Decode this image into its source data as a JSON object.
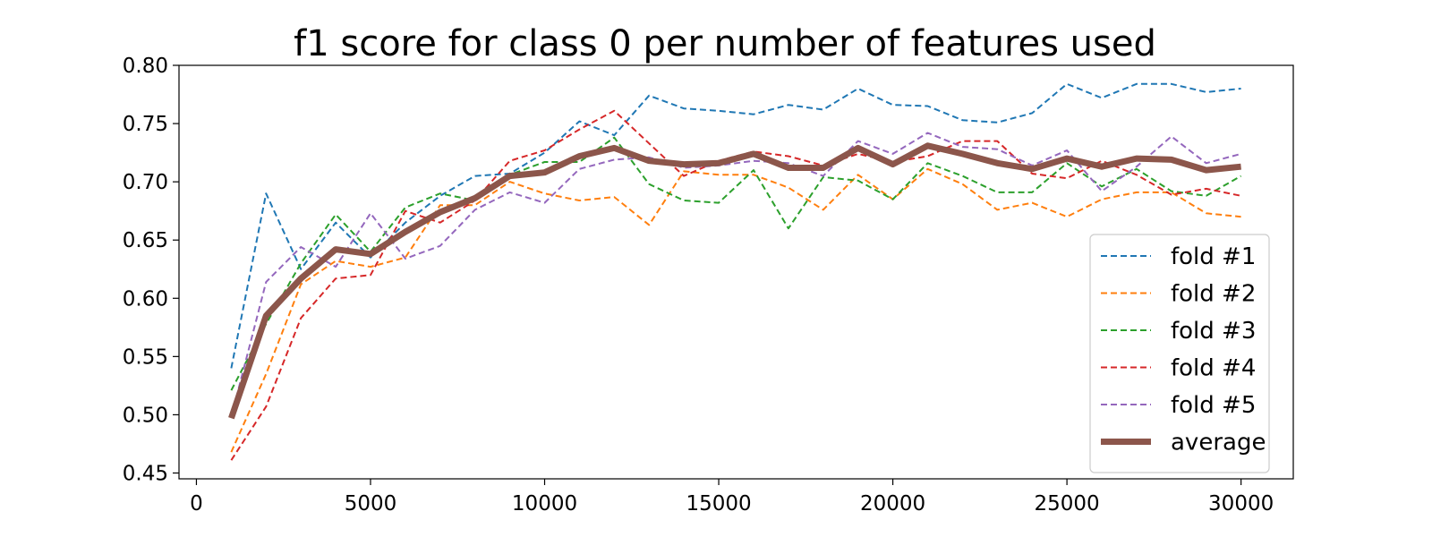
{
  "chart_data": {
    "type": "line",
    "title": "f1 score for class 0 per number of features used",
    "xlabel": "",
    "ylabel": "",
    "xlim": [
      -500,
      31500
    ],
    "ylim": [
      0.445,
      0.8
    ],
    "xticks": [
      0,
      5000,
      10000,
      15000,
      20000,
      25000,
      30000
    ],
    "yticks": [
      0.45,
      0.5,
      0.55,
      0.6,
      0.65,
      0.7,
      0.75,
      0.8
    ],
    "legend_position": "lower-right",
    "grid": false,
    "x": [
      1000,
      2000,
      3000,
      4000,
      5000,
      6000,
      7000,
      8000,
      9000,
      10000,
      11000,
      12000,
      13000,
      14000,
      15000,
      16000,
      17000,
      18000,
      19000,
      20000,
      21000,
      22000,
      23000,
      24000,
      25000,
      26000,
      27000,
      28000,
      29000,
      30000
    ],
    "series": [
      {
        "name": "fold #1",
        "color": "#1f77b4",
        "style": "dashed",
        "values": [
          0.54,
          0.69,
          0.625,
          0.665,
          0.635,
          0.665,
          0.688,
          0.705,
          0.707,
          0.725,
          0.752,
          0.74,
          0.774,
          0.763,
          0.761,
          0.758,
          0.766,
          0.762,
          0.78,
          0.766,
          0.765,
          0.753,
          0.751,
          0.759,
          0.784,
          0.772,
          0.784,
          0.784,
          0.777,
          0.78
        ]
      },
      {
        "name": "fold #2",
        "color": "#ff7f0e",
        "style": "dashed",
        "values": [
          0.468,
          0.535,
          0.612,
          0.632,
          0.627,
          0.635,
          0.68,
          0.68,
          0.7,
          0.69,
          0.684,
          0.687,
          0.663,
          0.709,
          0.706,
          0.706,
          0.695,
          0.676,
          0.706,
          0.685,
          0.711,
          0.698,
          0.676,
          0.682,
          0.67,
          0.685,
          0.691,
          0.691,
          0.673,
          0.67
        ]
      },
      {
        "name": "fold #3",
        "color": "#2ca02c",
        "style": "dashed",
        "values": [
          0.521,
          0.578,
          0.63,
          0.672,
          0.64,
          0.678,
          0.69,
          0.684,
          0.706,
          0.717,
          0.717,
          0.738,
          0.698,
          0.684,
          0.682,
          0.71,
          0.66,
          0.704,
          0.701,
          0.685,
          0.716,
          0.705,
          0.691,
          0.691,
          0.716,
          0.696,
          0.711,
          0.692,
          0.688,
          0.705
        ]
      },
      {
        "name": "fold #4",
        "color": "#d62728",
        "style": "dashed",
        "values": [
          0.461,
          0.507,
          0.583,
          0.617,
          0.62,
          0.675,
          0.665,
          0.684,
          0.718,
          0.727,
          0.745,
          0.761,
          0.733,
          0.705,
          0.718,
          0.726,
          0.722,
          0.714,
          0.724,
          0.717,
          0.722,
          0.735,
          0.735,
          0.707,
          0.703,
          0.718,
          0.706,
          0.689,
          0.694,
          0.688
        ]
      },
      {
        "name": "fold #5",
        "color": "#9467bd",
        "style": "dashed",
        "values": [
          0.498,
          0.614,
          0.644,
          0.627,
          0.673,
          0.634,
          0.645,
          0.676,
          0.691,
          0.682,
          0.711,
          0.719,
          0.721,
          0.712,
          0.714,
          0.718,
          0.716,
          0.705,
          0.735,
          0.724,
          0.742,
          0.73,
          0.728,
          0.714,
          0.727,
          0.692,
          0.713,
          0.739,
          0.716,
          0.724
        ]
      },
      {
        "name": "average",
        "color": "#8c564b",
        "style": "solid-thick",
        "values": [
          0.497,
          0.585,
          0.617,
          0.642,
          0.638,
          0.657,
          0.674,
          0.686,
          0.705,
          0.708,
          0.722,
          0.729,
          0.718,
          0.715,
          0.716,
          0.724,
          0.712,
          0.712,
          0.729,
          0.715,
          0.731,
          0.724,
          0.716,
          0.711,
          0.72,
          0.713,
          0.72,
          0.719,
          0.71,
          0.713
        ]
      }
    ]
  }
}
